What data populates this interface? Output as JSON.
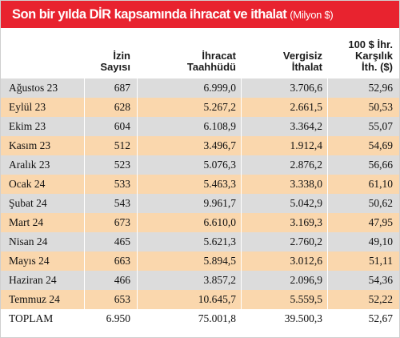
{
  "title": {
    "main": "Son bir yılda DİR kapsamında ihracat ve ithalat",
    "unit": "(Milyon $)"
  },
  "columns": [
    "",
    "İzin\nSayısı",
    "İhracat\nTaahhüdü",
    "Vergisiz\nİthalat",
    "100 $ İhr.\nKarşılık\nİth. ($)"
  ],
  "rows": [
    {
      "label": "Ağustos 23",
      "values": [
        "687",
        "6.999,0",
        "3.706,6",
        "52,96"
      ]
    },
    {
      "label": "Eylül 23",
      "values": [
        "628",
        "5.267,2",
        "2.661,5",
        "50,53"
      ]
    },
    {
      "label": "Ekim 23",
      "values": [
        "604",
        "6.108,9",
        "3.364,2",
        "55,07"
      ]
    },
    {
      "label": "Kasım 23",
      "values": [
        "512",
        "3.496,7",
        "1.912,4",
        "54,69"
      ]
    },
    {
      "label": "Aralık 23",
      "values": [
        "523",
        "5.076,3",
        "2.876,2",
        "56,66"
      ]
    },
    {
      "label": "Ocak 24",
      "values": [
        "533",
        "5.463,3",
        "3.338,0",
        "61,10"
      ]
    },
    {
      "label": "Şubat 24",
      "values": [
        "543",
        "9.961,7",
        "5.042,9",
        "50,62"
      ]
    },
    {
      "label": "Mart 24",
      "values": [
        "673",
        "6.610,0",
        "3.169,3",
        "47,95"
      ]
    },
    {
      "label": "Nisan 24",
      "values": [
        "465",
        "5.621,3",
        "2.760,2",
        "49,10"
      ]
    },
    {
      "label": "Mayıs 24",
      "values": [
        "663",
        "5.894,5",
        "3.012,6",
        "51,11"
      ]
    },
    {
      "label": "Haziran 24",
      "values": [
        "466",
        "3.857,2",
        "2.096,9",
        "54,36"
      ]
    },
    {
      "label": "Temmuz 24",
      "values": [
        "653",
        "10.645,7",
        "5.559,5",
        "52,22"
      ]
    },
    {
      "label": "TOPLAM",
      "values": [
        "6.950",
        "75.001,8",
        "39.500,3",
        "52,67"
      ]
    }
  ],
  "colors": {
    "title_bg": "#e8232f",
    "row_gray": "#dcdcdc",
    "row_peach": "#fad7ad"
  }
}
